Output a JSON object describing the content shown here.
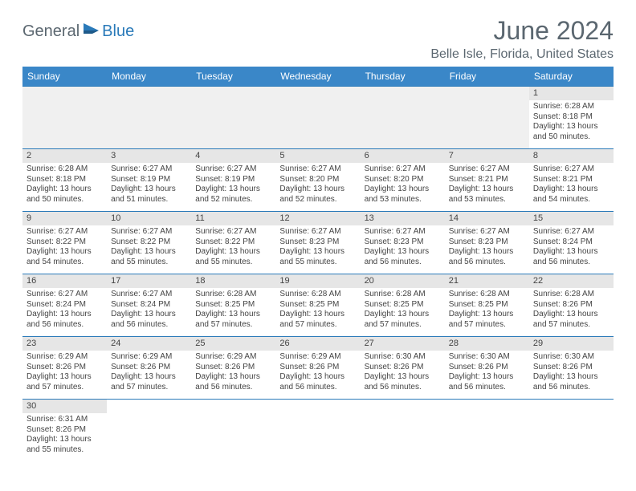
{
  "brand": {
    "general": "General",
    "blue": "Blue"
  },
  "title": "June 2024",
  "location": "Belle Isle, Florida, United States",
  "colors": {
    "header_bg": "#3a87c8",
    "row_divider": "#2a7ab9",
    "daynum_bg": "#e6e6e6",
    "empty_bg": "#f0f0f0",
    "text_muted": "#5b6770"
  },
  "daysOfWeek": [
    "Sunday",
    "Monday",
    "Tuesday",
    "Wednesday",
    "Thursday",
    "Friday",
    "Saturday"
  ],
  "weeks": [
    [
      null,
      null,
      null,
      null,
      null,
      null,
      {
        "n": "1",
        "sr": "6:28 AM",
        "ss": "8:18 PM",
        "dl": "13 hours and 50 minutes."
      }
    ],
    [
      {
        "n": "2",
        "sr": "6:28 AM",
        "ss": "8:18 PM",
        "dl": "13 hours and 50 minutes."
      },
      {
        "n": "3",
        "sr": "6:27 AM",
        "ss": "8:19 PM",
        "dl": "13 hours and 51 minutes."
      },
      {
        "n": "4",
        "sr": "6:27 AM",
        "ss": "8:19 PM",
        "dl": "13 hours and 52 minutes."
      },
      {
        "n": "5",
        "sr": "6:27 AM",
        "ss": "8:20 PM",
        "dl": "13 hours and 52 minutes."
      },
      {
        "n": "6",
        "sr": "6:27 AM",
        "ss": "8:20 PM",
        "dl": "13 hours and 53 minutes."
      },
      {
        "n": "7",
        "sr": "6:27 AM",
        "ss": "8:21 PM",
        "dl": "13 hours and 53 minutes."
      },
      {
        "n": "8",
        "sr": "6:27 AM",
        "ss": "8:21 PM",
        "dl": "13 hours and 54 minutes."
      }
    ],
    [
      {
        "n": "9",
        "sr": "6:27 AM",
        "ss": "8:22 PM",
        "dl": "13 hours and 54 minutes."
      },
      {
        "n": "10",
        "sr": "6:27 AM",
        "ss": "8:22 PM",
        "dl": "13 hours and 55 minutes."
      },
      {
        "n": "11",
        "sr": "6:27 AM",
        "ss": "8:22 PM",
        "dl": "13 hours and 55 minutes."
      },
      {
        "n": "12",
        "sr": "6:27 AM",
        "ss": "8:23 PM",
        "dl": "13 hours and 55 minutes."
      },
      {
        "n": "13",
        "sr": "6:27 AM",
        "ss": "8:23 PM",
        "dl": "13 hours and 56 minutes."
      },
      {
        "n": "14",
        "sr": "6:27 AM",
        "ss": "8:23 PM",
        "dl": "13 hours and 56 minutes."
      },
      {
        "n": "15",
        "sr": "6:27 AM",
        "ss": "8:24 PM",
        "dl": "13 hours and 56 minutes."
      }
    ],
    [
      {
        "n": "16",
        "sr": "6:27 AM",
        "ss": "8:24 PM",
        "dl": "13 hours and 56 minutes."
      },
      {
        "n": "17",
        "sr": "6:27 AM",
        "ss": "8:24 PM",
        "dl": "13 hours and 56 minutes."
      },
      {
        "n": "18",
        "sr": "6:28 AM",
        "ss": "8:25 PM",
        "dl": "13 hours and 57 minutes."
      },
      {
        "n": "19",
        "sr": "6:28 AM",
        "ss": "8:25 PM",
        "dl": "13 hours and 57 minutes."
      },
      {
        "n": "20",
        "sr": "6:28 AM",
        "ss": "8:25 PM",
        "dl": "13 hours and 57 minutes."
      },
      {
        "n": "21",
        "sr": "6:28 AM",
        "ss": "8:25 PM",
        "dl": "13 hours and 57 minutes."
      },
      {
        "n": "22",
        "sr": "6:28 AM",
        "ss": "8:26 PM",
        "dl": "13 hours and 57 minutes."
      }
    ],
    [
      {
        "n": "23",
        "sr": "6:29 AM",
        "ss": "8:26 PM",
        "dl": "13 hours and 57 minutes."
      },
      {
        "n": "24",
        "sr": "6:29 AM",
        "ss": "8:26 PM",
        "dl": "13 hours and 57 minutes."
      },
      {
        "n": "25",
        "sr": "6:29 AM",
        "ss": "8:26 PM",
        "dl": "13 hours and 56 minutes."
      },
      {
        "n": "26",
        "sr": "6:29 AM",
        "ss": "8:26 PM",
        "dl": "13 hours and 56 minutes."
      },
      {
        "n": "27",
        "sr": "6:30 AM",
        "ss": "8:26 PM",
        "dl": "13 hours and 56 minutes."
      },
      {
        "n": "28",
        "sr": "6:30 AM",
        "ss": "8:26 PM",
        "dl": "13 hours and 56 minutes."
      },
      {
        "n": "29",
        "sr": "6:30 AM",
        "ss": "8:26 PM",
        "dl": "13 hours and 56 minutes."
      }
    ],
    [
      {
        "n": "30",
        "sr": "6:31 AM",
        "ss": "8:26 PM",
        "dl": "13 hours and 55 minutes."
      },
      null,
      null,
      null,
      null,
      null,
      null
    ]
  ],
  "labels": {
    "sunrise": "Sunrise:",
    "sunset": "Sunset:",
    "daylight": "Daylight:"
  }
}
